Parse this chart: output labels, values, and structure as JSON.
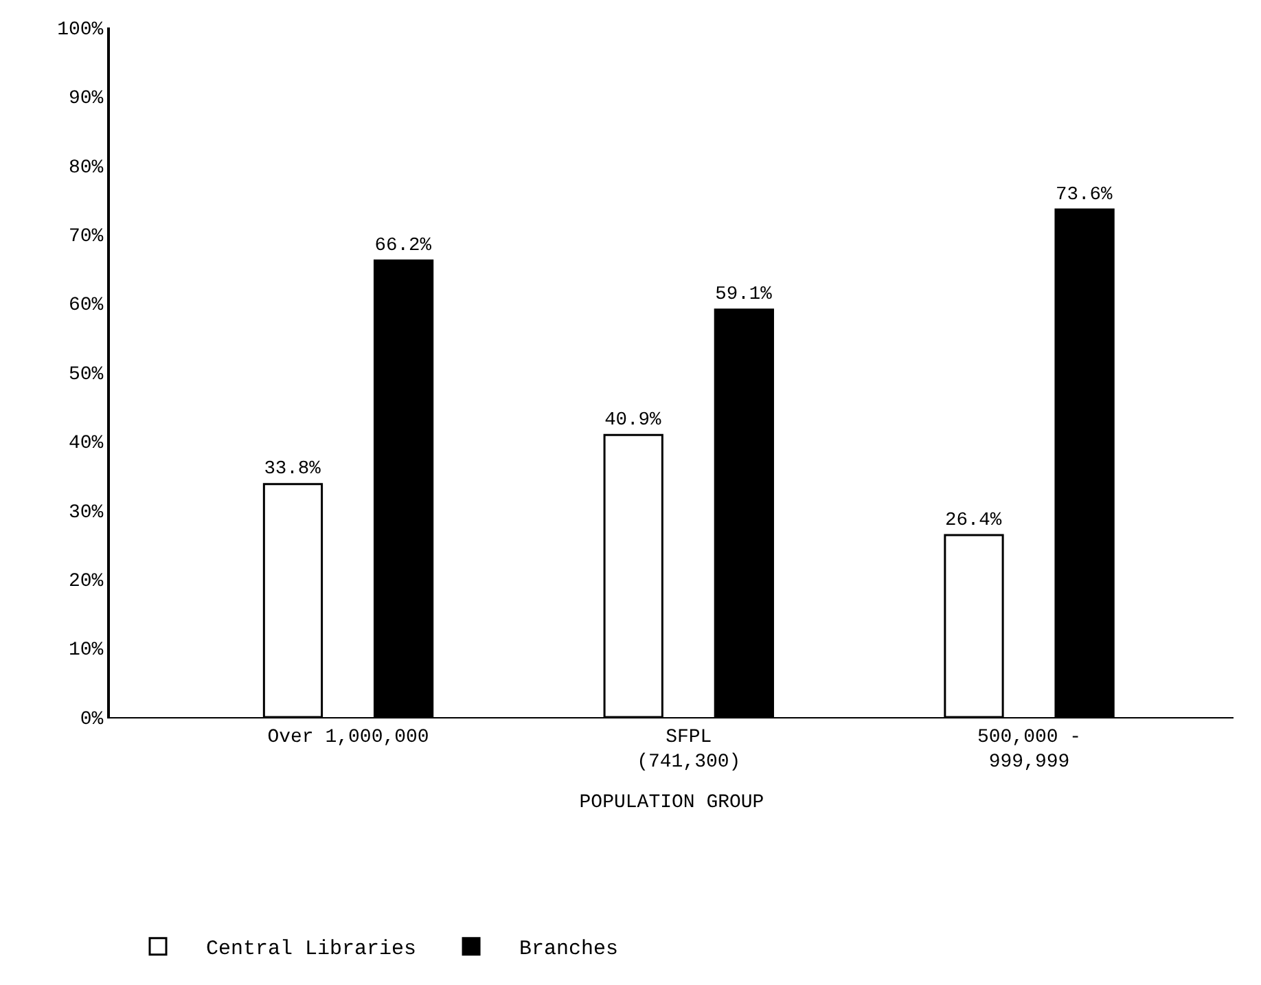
{
  "chart_data": {
    "type": "bar",
    "xlabel": "POPULATION GROUP",
    "categories": [
      "Over 1,000,000",
      "SFPL\n(741,300)",
      "500,000 -\n999,999"
    ],
    "series": [
      {
        "name": "Central Libraries",
        "color": "#ffffff",
        "values": [
          33.8,
          40.9,
          26.4
        ],
        "value_labels": [
          "33.8%",
          "40.9%",
          "26.4%"
        ]
      },
      {
        "name": "Branches",
        "color": "#000000",
        "values": [
          66.2,
          59.1,
          73.6
        ],
        "value_labels": [
          "66.2%",
          "59.1%",
          "73.6%"
        ]
      }
    ],
    "ylim": [
      0,
      100
    ],
    "yticks": [
      {
        "value": 0,
        "label": "0%"
      },
      {
        "value": 10,
        "label": "10%"
      },
      {
        "value": 20,
        "label": "20%"
      },
      {
        "value": 30,
        "label": "30%"
      },
      {
        "value": 40,
        "label": "40%"
      },
      {
        "value": 50,
        "label": "50%"
      },
      {
        "value": 60,
        "label": "60%"
      },
      {
        "value": 70,
        "label": "70%"
      },
      {
        "value": 80,
        "label": "80%"
      },
      {
        "value": 90,
        "label": "90%"
      },
      {
        "value": 100,
        "label": "100%"
      }
    ],
    "legend": "bottom"
  }
}
